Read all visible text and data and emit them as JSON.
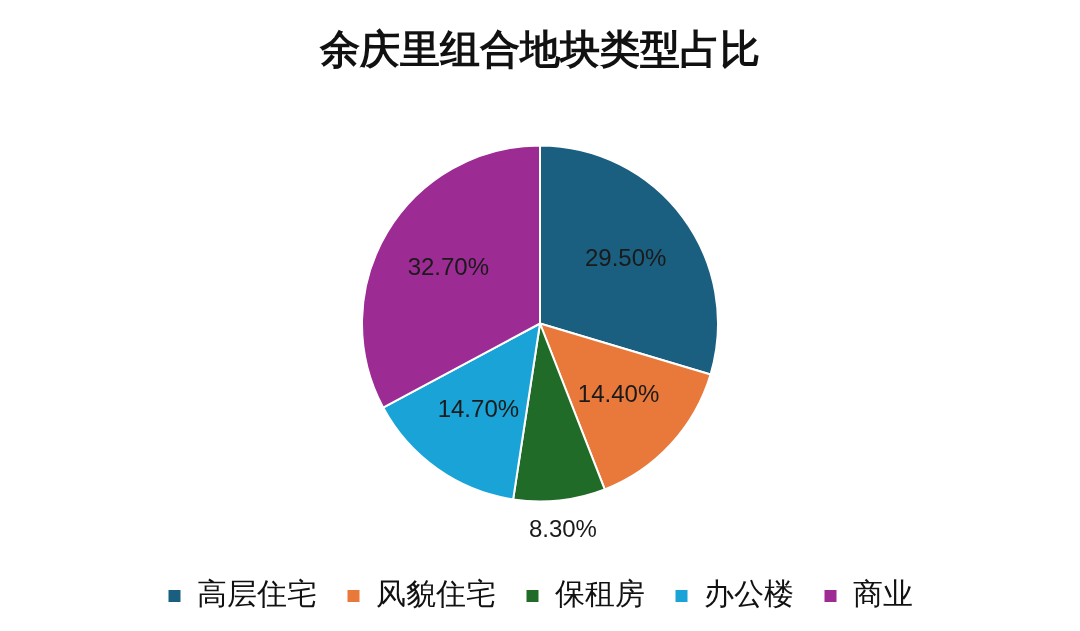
{
  "chart_data": {
    "type": "pie",
    "title": "余庆里组合地块类型占比",
    "categories": [
      "高层住宅",
      "风貌住宅",
      "保租房",
      "办公楼",
      "商业"
    ],
    "values": [
      29.5,
      14.4,
      8.3,
      14.7,
      32.7
    ],
    "colors": [
      "#1b5f80",
      "#e8793a",
      "#1f6b27",
      "#1aa3d6",
      "#9c2b93"
    ],
    "value_labels": [
      "29.50%",
      "14.40%",
      "8.30%",
      "14.70%",
      "32.70%"
    ],
    "legend": "bottom"
  }
}
